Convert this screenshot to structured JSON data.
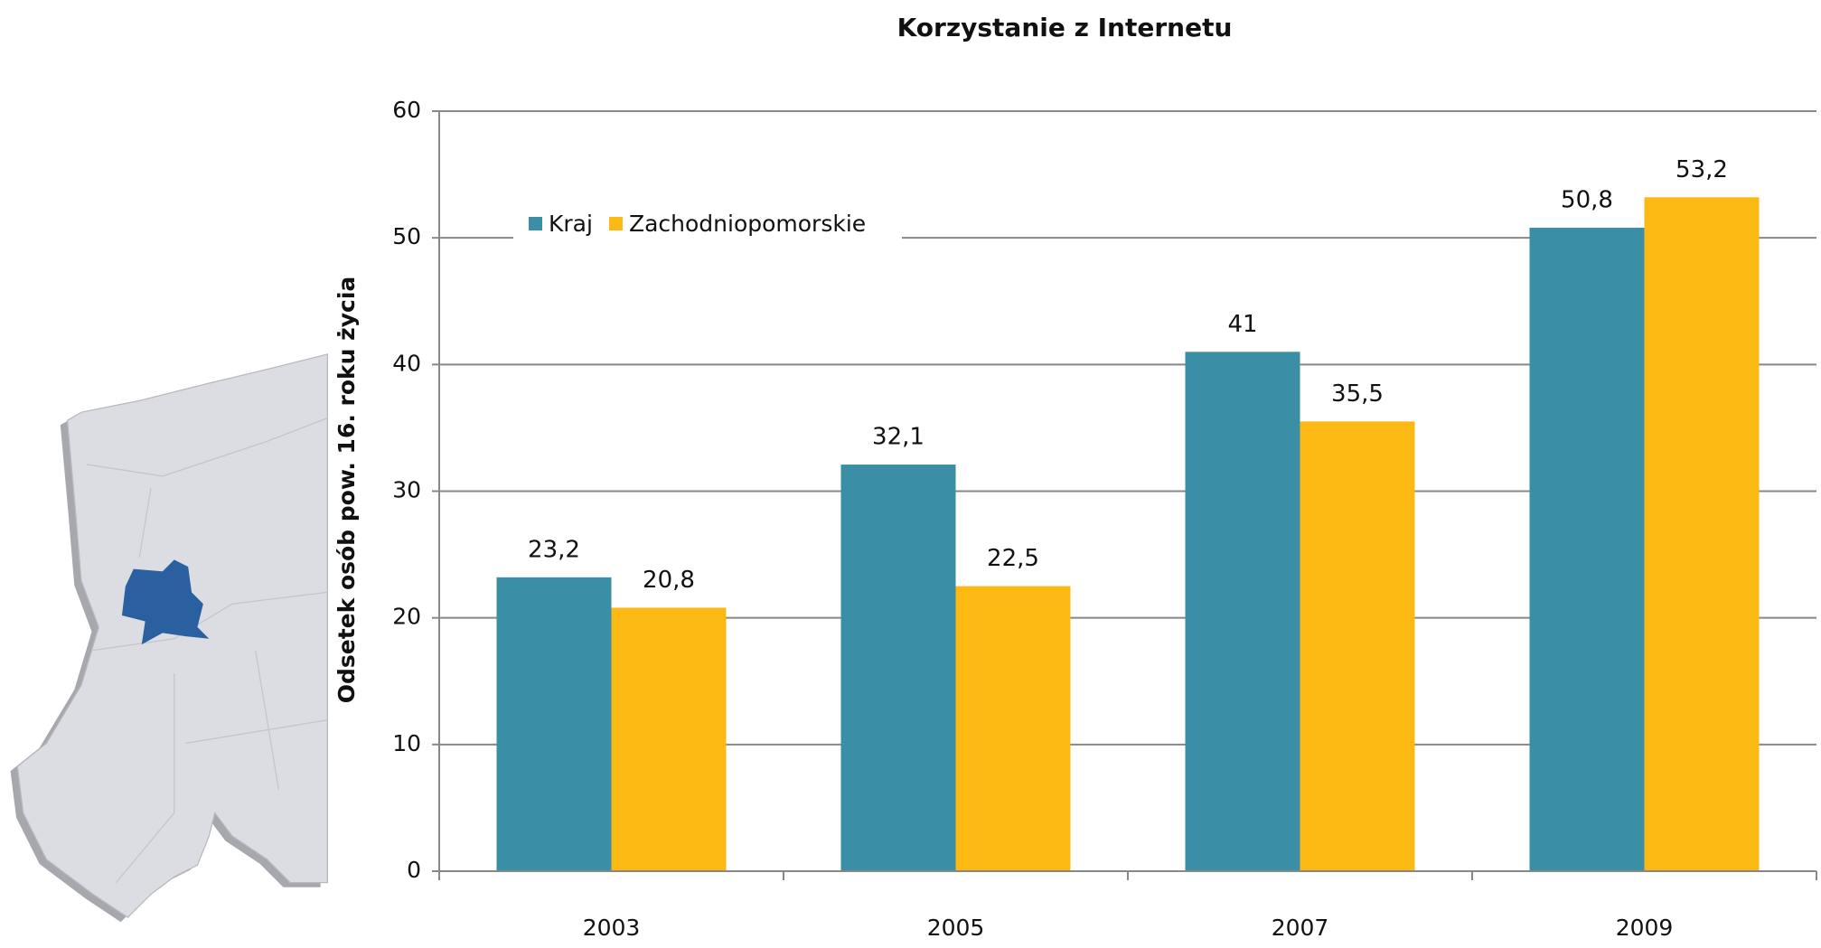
{
  "chart_data": {
    "type": "bar",
    "title": "Korzystanie z Internetu",
    "y_label": "Odsetek osób pow. 16. roku życia",
    "categories": [
      "2003",
      "2005",
      "2007",
      "2009"
    ],
    "series": [
      {
        "name": "Kraj",
        "color": "#3a8fa6",
        "values": [
          23.2,
          32.1,
          41,
          50.8
        ],
        "value_labels": [
          "23,2",
          "32,1",
          "41",
          "50,8"
        ]
      },
      {
        "name": "Zachodniopomorskie",
        "color": "#fdb913",
        "values": [
          20.8,
          22.5,
          35.5,
          53.2
        ],
        "value_labels": [
          "20,8",
          "22,5",
          "35,5",
          "53,2"
        ]
      }
    ],
    "ylim": [
      0,
      60
    ],
    "yticks": [
      0,
      10,
      20,
      30,
      40,
      50,
      60
    ],
    "grid": true,
    "legend": "top-left"
  }
}
